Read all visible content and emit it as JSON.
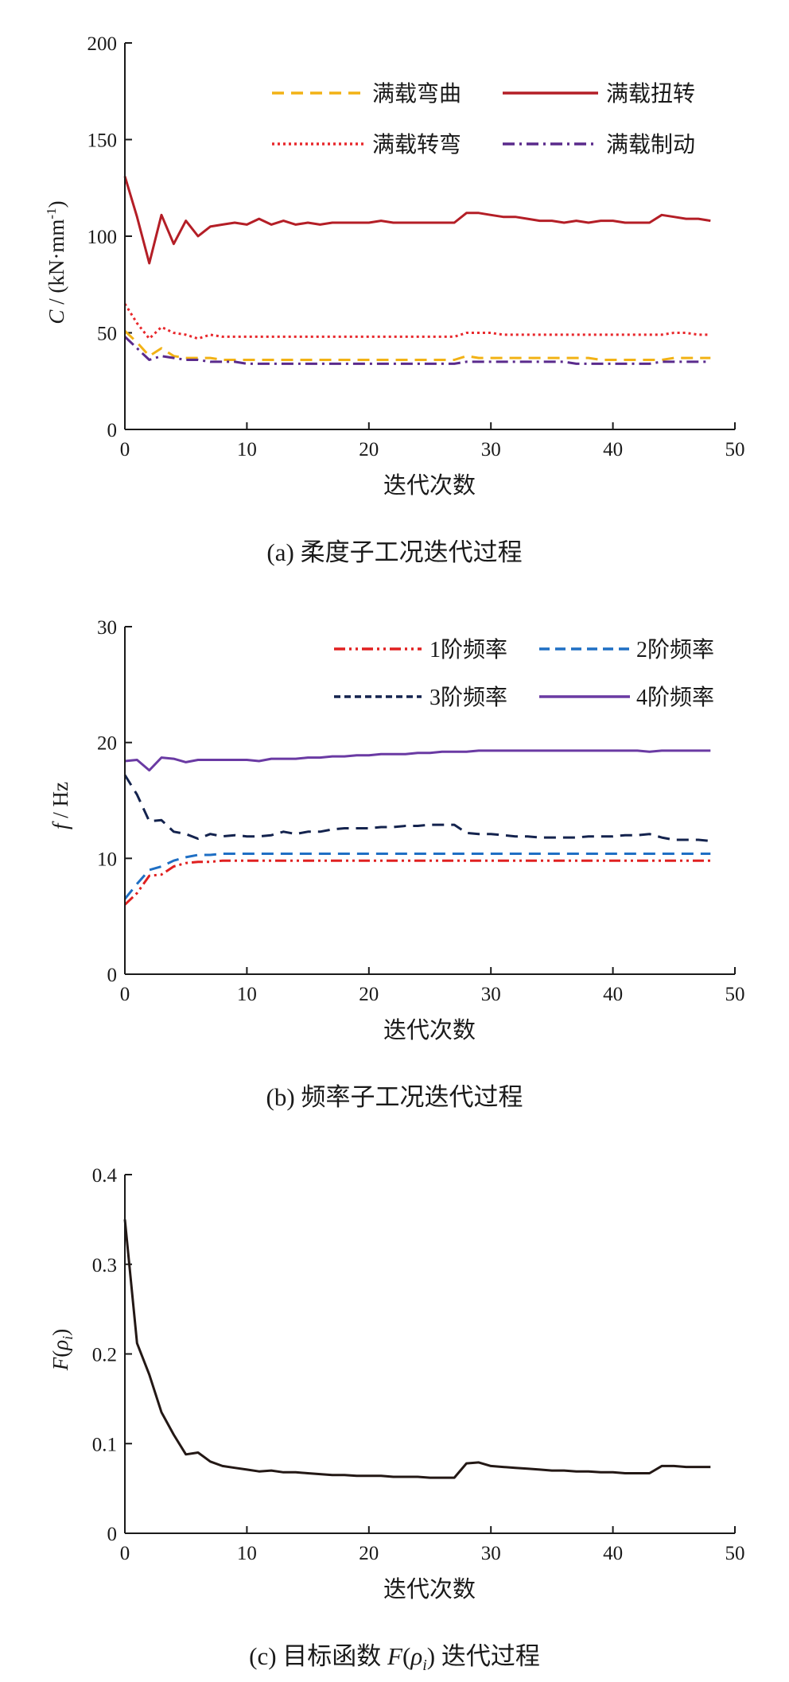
{
  "chart_data": [
    {
      "type": "line",
      "caption": "(a)  柔度子工况迭代过程",
      "ylabel_italic": "C",
      "ylabel_rest": " / (kN·mm",
      "ylabel_sup": "-1",
      "ylabel_end": ")",
      "xlabel": "迭代次数",
      "xlim": [
        0,
        50
      ],
      "ylim": [
        0,
        200
      ],
      "xticks": [
        0,
        10,
        20,
        30,
        40,
        50
      ],
      "yticks": [
        0,
        50,
        100,
        150,
        200
      ],
      "legend_position": "top-right",
      "x": [
        0,
        1,
        2,
        3,
        4,
        5,
        6,
        7,
        8,
        9,
        10,
        11,
        12,
        13,
        14,
        15,
        16,
        17,
        18,
        19,
        20,
        21,
        22,
        23,
        24,
        25,
        26,
        27,
        28,
        29,
        30,
        31,
        32,
        33,
        34,
        35,
        36,
        37,
        38,
        39,
        40,
        41,
        42,
        43,
        44,
        45,
        46,
        47,
        48
      ],
      "series": [
        {
          "name": "满载弯曲",
          "color": "#f2b215",
          "dash": "dashed",
          "values": [
            51,
            45,
            38,
            42,
            38,
            37,
            37,
            37,
            36,
            36,
            36,
            36,
            36,
            36,
            36,
            36,
            36,
            36,
            36,
            36,
            36,
            36,
            36,
            36,
            36,
            36,
            36,
            36,
            38,
            37,
            37,
            37,
            37,
            37,
            37,
            37,
            37,
            37,
            37,
            36,
            36,
            36,
            36,
            36,
            36,
            37,
            37,
            37,
            37
          ]
        },
        {
          "name": "满载扭转",
          "color": "#b41e26",
          "dash": "solid",
          "values": [
            131,
            110,
            86,
            111,
            96,
            108,
            100,
            105,
            106,
            107,
            106,
            109,
            106,
            108,
            106,
            107,
            106,
            107,
            107,
            107,
            107,
            108,
            107,
            107,
            107,
            107,
            107,
            107,
            112,
            112,
            111,
            110,
            110,
            109,
            108,
            108,
            107,
            108,
            107,
            108,
            108,
            107,
            107,
            107,
            111,
            110,
            109,
            109,
            108
          ]
        },
        {
          "name": "满载转弯",
          "color": "#e8282c",
          "dash": "dotted",
          "values": [
            65,
            55,
            47,
            53,
            50,
            49,
            47,
            49,
            48,
            48,
            48,
            48,
            48,
            48,
            48,
            48,
            48,
            48,
            48,
            48,
            48,
            48,
            48,
            48,
            48,
            48,
            48,
            48,
            50,
            50,
            50,
            49,
            49,
            49,
            49,
            49,
            49,
            49,
            49,
            49,
            49,
            49,
            49,
            49,
            49,
            50,
            50,
            49,
            49
          ]
        },
        {
          "name": "满载制动",
          "color": "#5a2a8c",
          "dash": "dashdot",
          "values": [
            48,
            42,
            36,
            38,
            37,
            36,
            36,
            35,
            35,
            35,
            34,
            34,
            34,
            34,
            34,
            34,
            34,
            34,
            34,
            34,
            34,
            34,
            34,
            34,
            34,
            34,
            34,
            34,
            35,
            35,
            35,
            35,
            35,
            35,
            35,
            35,
            35,
            34,
            34,
            34,
            34,
            34,
            34,
            34,
            35,
            35,
            35,
            35,
            35
          ]
        }
      ]
    },
    {
      "type": "line",
      "caption": "(b)  频率子工况迭代过程",
      "ylabel_italic": "f",
      "ylabel_rest": " / Hz",
      "xlabel": "迭代次数",
      "xlim": [
        0,
        50
      ],
      "ylim": [
        0,
        30
      ],
      "xticks": [
        0,
        10,
        20,
        30,
        40,
        50
      ],
      "yticks": [
        0,
        10,
        20,
        30
      ],
      "legend_position": "top-right",
      "x": [
        0,
        1,
        2,
        3,
        4,
        5,
        6,
        7,
        8,
        9,
        10,
        11,
        12,
        13,
        14,
        15,
        16,
        17,
        18,
        19,
        20,
        21,
        22,
        23,
        24,
        25,
        26,
        27,
        28,
        29,
        30,
        31,
        32,
        33,
        34,
        35,
        36,
        37,
        38,
        39,
        40,
        41,
        42,
        43,
        44,
        45,
        46,
        47,
        48
      ],
      "series": [
        {
          "name": "1阶频率",
          "color": "#e02020",
          "dash": "dashdotdot",
          "values": [
            6.0,
            7.0,
            8.5,
            8.6,
            9.3,
            9.6,
            9.7,
            9.7,
            9.8,
            9.8,
            9.8,
            9.8,
            9.8,
            9.8,
            9.8,
            9.8,
            9.8,
            9.8,
            9.8,
            9.8,
            9.8,
            9.8,
            9.8,
            9.8,
            9.8,
            9.8,
            9.8,
            9.8,
            9.8,
            9.8,
            9.8,
            9.8,
            9.8,
            9.8,
            9.8,
            9.8,
            9.8,
            9.8,
            9.8,
            9.8,
            9.8,
            9.8,
            9.8,
            9.8,
            9.8,
            9.8,
            9.8,
            9.8,
            9.8
          ]
        },
        {
          "name": "2阶频率",
          "color": "#1f6fc4",
          "dash": "dashed",
          "values": [
            6.5,
            7.8,
            9.0,
            9.3,
            9.8,
            10.1,
            10.3,
            10.3,
            10.4,
            10.4,
            10.4,
            10.4,
            10.4,
            10.4,
            10.4,
            10.4,
            10.4,
            10.4,
            10.4,
            10.4,
            10.4,
            10.4,
            10.4,
            10.4,
            10.4,
            10.4,
            10.4,
            10.4,
            10.4,
            10.4,
            10.4,
            10.4,
            10.4,
            10.4,
            10.4,
            10.4,
            10.4,
            10.4,
            10.4,
            10.4,
            10.4,
            10.4,
            10.4,
            10.4,
            10.4,
            10.4,
            10.4,
            10.4,
            10.4
          ]
        },
        {
          "name": "3阶频率",
          "color": "#14234e",
          "dash": "dashed",
          "values": [
            17.2,
            15.5,
            13.2,
            13.3,
            12.3,
            12.1,
            11.7,
            12.1,
            11.9,
            12.0,
            11.9,
            11.9,
            12.0,
            12.3,
            12.1,
            12.3,
            12.3,
            12.5,
            12.6,
            12.6,
            12.6,
            12.7,
            12.7,
            12.8,
            12.8,
            12.9,
            12.9,
            12.9,
            12.2,
            12.1,
            12.1,
            12.0,
            11.9,
            11.9,
            11.8,
            11.8,
            11.8,
            11.8,
            11.9,
            11.9,
            11.9,
            12.0,
            12.0,
            12.1,
            11.8,
            11.6,
            11.6,
            11.6,
            11.5
          ]
        },
        {
          "name": "4阶频率",
          "color": "#6a3aa3",
          "dash": "solid",
          "values": [
            18.4,
            18.5,
            17.6,
            18.7,
            18.6,
            18.3,
            18.5,
            18.5,
            18.5,
            18.5,
            18.5,
            18.4,
            18.6,
            18.6,
            18.6,
            18.7,
            18.7,
            18.8,
            18.8,
            18.9,
            18.9,
            19.0,
            19.0,
            19.0,
            19.1,
            19.1,
            19.2,
            19.2,
            19.2,
            19.3,
            19.3,
            19.3,
            19.3,
            19.3,
            19.3,
            19.3,
            19.3,
            19.3,
            19.3,
            19.3,
            19.3,
            19.3,
            19.3,
            19.2,
            19.3,
            19.3,
            19.3,
            19.3,
            19.3
          ]
        }
      ]
    },
    {
      "type": "line",
      "caption_prefix": "(c)  目标函数 ",
      "caption_italic": "F",
      "caption_mid": "(",
      "caption_rho": "ρ",
      "caption_sub": "i",
      "caption_suffix": ") 迭代过程",
      "ylabel_italic": "F",
      "ylabel_rest": "(",
      "ylabel_rho": "ρ",
      "ylabel_sub": "i",
      "ylabel_end": ")",
      "xlabel": "迭代次数",
      "xlim": [
        0,
        50
      ],
      "ylim": [
        0,
        0.4
      ],
      "xticks": [
        0,
        10,
        20,
        30,
        40,
        50
      ],
      "yticks": [
        0,
        0.1,
        0.2,
        0.3,
        0.4
      ],
      "x": [
        0,
        1,
        2,
        3,
        4,
        5,
        6,
        7,
        8,
        9,
        10,
        11,
        12,
        13,
        14,
        15,
        16,
        17,
        18,
        19,
        20,
        21,
        22,
        23,
        24,
        25,
        26,
        27,
        28,
        29,
        30,
        31,
        32,
        33,
        34,
        35,
        36,
        37,
        38,
        39,
        40,
        41,
        42,
        43,
        44,
        45,
        46,
        47,
        48
      ],
      "series": [
        {
          "color": "#231815",
          "dash": "solid",
          "values": [
            0.35,
            0.212,
            0.177,
            0.135,
            0.11,
            0.088,
            0.09,
            0.08,
            0.075,
            0.073,
            0.071,
            0.069,
            0.07,
            0.068,
            0.068,
            0.067,
            0.066,
            0.065,
            0.065,
            0.064,
            0.064,
            0.064,
            0.063,
            0.063,
            0.063,
            0.062,
            0.062,
            0.062,
            0.078,
            0.079,
            0.075,
            0.074,
            0.073,
            0.072,
            0.071,
            0.07,
            0.07,
            0.069,
            0.069,
            0.068,
            0.068,
            0.067,
            0.067,
            0.067,
            0.075,
            0.075,
            0.074,
            0.074,
            0.074
          ]
        }
      ]
    }
  ]
}
